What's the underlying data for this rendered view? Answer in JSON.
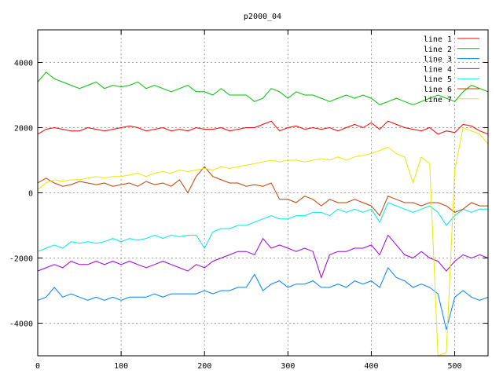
{
  "chart_data": {
    "type": "line",
    "title": "p2000_04",
    "xlabel": "",
    "ylabel": "",
    "xlim": [
      0,
      540
    ],
    "ylim": [
      -5000,
      5000
    ],
    "grid": true,
    "legend_placement": "top-right",
    "x_ticks": [
      0,
      100,
      200,
      300,
      400,
      500
    ],
    "y_ticks": [
      -4000,
      -2000,
      0,
      2000,
      4000
    ],
    "x_step": 10,
    "series": [
      {
        "name": "line 1",
        "color": "#ff0000",
        "values": [
          1800,
          1950,
          2000,
          1950,
          1900,
          1900,
          2000,
          1950,
          1900,
          1950,
          2000,
          2050,
          2000,
          1900,
          1950,
          2000,
          1900,
          1950,
          1900,
          2000,
          1950,
          1950,
          2000,
          1900,
          1950,
          2000,
          2000,
          2100,
          2200,
          1900,
          2000,
          2050,
          1950,
          2000,
          1950,
          2000,
          1900,
          2000,
          2100,
          2000,
          2150,
          1950,
          2200,
          2100,
          2000,
          1950,
          1900,
          2000,
          1800,
          1900,
          1850,
          2100,
          2050,
          1900,
          1800
        ]
      },
      {
        "name": "line 2",
        "color": "#00c000",
        "values": [
          3400,
          3700,
          3500,
          3400,
          3300,
          3200,
          3300,
          3400,
          3200,
          3300,
          3250,
          3300,
          3400,
          3200,
          3300,
          3200,
          3100,
          3200,
          3300,
          3100,
          3100,
          3000,
          3200,
          3000,
          3000,
          3000,
          2800,
          2900,
          3200,
          3100,
          2900,
          3100,
          3000,
          3000,
          2900,
          2800,
          2900,
          3000,
          2900,
          3000,
          2900,
          2700,
          2800,
          2900,
          2800,
          2700,
          2800,
          2900,
          3000,
          2900,
          2800,
          3100,
          3300,
          3200,
          3100
        ]
      },
      {
        "name": "line 3",
        "color": "#0080ff",
        "values": [
          -3300,
          -3200,
          -2900,
          -3200,
          -3100,
          -3200,
          -3300,
          -3200,
          -3300,
          -3200,
          -3300,
          -3200,
          -3200,
          -3200,
          -3100,
          -3200,
          -3100,
          -3100,
          -3100,
          -3100,
          -3000,
          -3100,
          -3000,
          -3000,
          -2900,
          -2900,
          -2500,
          -3000,
          -2800,
          -2700,
          -2900,
          -2800,
          -2800,
          -2700,
          -2900,
          -2900,
          -2800,
          -2900,
          -2700,
          -2800,
          -2700,
          -2900,
          -2300,
          -2600,
          -2700,
          -2900,
          -2800,
          -2900,
          -3100,
          -4200,
          -3200,
          -3000,
          -3200,
          -3300,
          -3200
        ]
      },
      {
        "name": "line 4",
        "color": "#a000e0",
        "values": [
          -2400,
          -2300,
          -2200,
          -2300,
          -2100,
          -2200,
          -2200,
          -2100,
          -2200,
          -2100,
          -2200,
          -2100,
          -2200,
          -2300,
          -2200,
          -2100,
          -2200,
          -2300,
          -2400,
          -2200,
          -2300,
          -2100,
          -2000,
          -1900,
          -1800,
          -1800,
          -1900,
          -1400,
          -1700,
          -1600,
          -1700,
          -1800,
          -1700,
          -1800,
          -2600,
          -1900,
          -1800,
          -1800,
          -1700,
          -1700,
          -1600,
          -1900,
          -1300,
          -1600,
          -1900,
          -2000,
          -1800,
          -2000,
          -2100,
          -2400,
          -2100,
          -1900,
          -2000,
          -1900,
          -2000
        ]
      },
      {
        "name": "line 5",
        "color": "#00e8e8",
        "values": [
          -1800,
          -1700,
          -1600,
          -1700,
          -1500,
          -1550,
          -1500,
          -1550,
          -1500,
          -1400,
          -1500,
          -1400,
          -1450,
          -1400,
          -1300,
          -1400,
          -1300,
          -1350,
          -1300,
          -1300,
          -1700,
          -1200,
          -1100,
          -1100,
          -1000,
          -1000,
          -900,
          -800,
          -700,
          -800,
          -800,
          -700,
          -700,
          -600,
          -600,
          -700,
          -500,
          -600,
          -500,
          -600,
          -500,
          -900,
          -300,
          -400,
          -500,
          -600,
          -500,
          -400,
          -600,
          -1000,
          -700,
          -500,
          -600,
          -500,
          -500
        ]
      },
      {
        "name": "line 6",
        "color": "#c04000",
        "values": [
          300,
          450,
          300,
          200,
          250,
          350,
          300,
          250,
          300,
          200,
          250,
          300,
          200,
          350,
          250,
          300,
          200,
          400,
          0,
          500,
          800,
          500,
          400,
          300,
          300,
          200,
          250,
          200,
          300,
          -200,
          -200,
          -300,
          -100,
          -200,
          -400,
          -200,
          -300,
          -300,
          -200,
          -300,
          -400,
          -700,
          -100,
          -200,
          -300,
          -300,
          -400,
          -300,
          -300,
          -400,
          -600,
          -500,
          -300,
          -400,
          -400
        ]
      },
      {
        "name": "line 7",
        "color": "#e8e800",
        "values": [
          100,
          300,
          400,
          350,
          400,
          400,
          450,
          500,
          450,
          500,
          500,
          550,
          600,
          500,
          600,
          650,
          600,
          700,
          650,
          700,
          750,
          700,
          800,
          750,
          800,
          850,
          900,
          950,
          1000,
          950,
          1000,
          1000,
          950,
          1000,
          1050,
          1000,
          1100,
          1000,
          1100,
          1150,
          1200,
          1300,
          1400,
          1200,
          1100,
          300,
          1100,
          900,
          -5000,
          -4900,
          700,
          2000,
          1900,
          1800,
          1500
        ]
      }
    ]
  }
}
